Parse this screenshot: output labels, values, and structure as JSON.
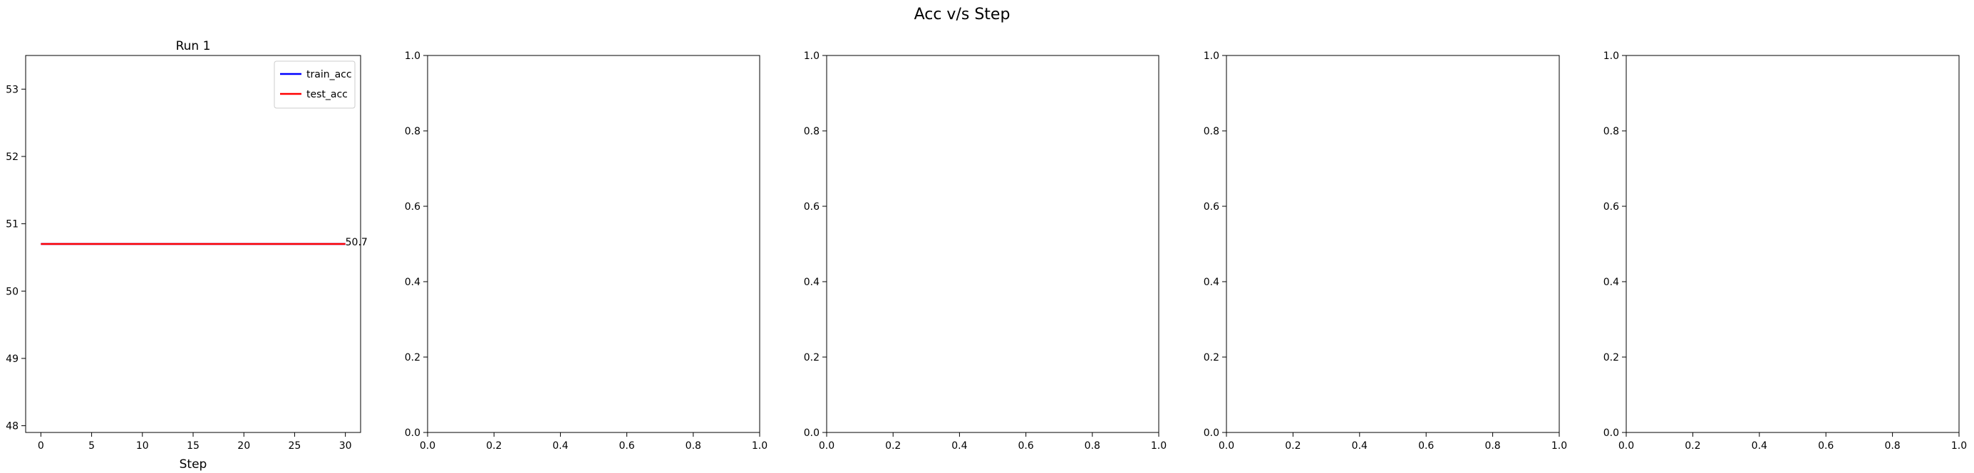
{
  "figure": {
    "suptitle": "Acc v/s Step"
  },
  "chart_data": [
    {
      "type": "line",
      "title": "Run 1",
      "xlabel": "Step",
      "ylabel": "",
      "xlim": [
        -1.5,
        31.5
      ],
      "ylim": [
        47.9,
        53.5
      ],
      "xticks": [
        0,
        5,
        10,
        15,
        20,
        25,
        30
      ],
      "yticks": [
        48,
        49,
        50,
        51,
        52,
        53
      ],
      "legend": "top-right",
      "grid": false,
      "series": [
        {
          "name": "train_acc",
          "color": "#0000ff",
          "x": [
            0,
            30
          ],
          "y": [
            50.7,
            50.7
          ]
        },
        {
          "name": "test_acc",
          "color": "#ff0000",
          "x": [
            0,
            30
          ],
          "y": [
            50.7,
            50.7
          ]
        }
      ],
      "annotations": [
        {
          "text": "50.7",
          "x": 30,
          "y": 50.7
        }
      ]
    },
    {
      "type": "line",
      "title": "",
      "xlabel": "",
      "ylabel": "",
      "xlim": [
        0,
        1
      ],
      "ylim": [
        0,
        1
      ],
      "xticks": [
        0.0,
        0.2,
        0.4,
        0.6,
        0.8,
        1.0
      ],
      "yticks": [
        0.0,
        0.2,
        0.4,
        0.6,
        0.8,
        1.0
      ],
      "xtick_labels": [
        "0.0",
        "0.2",
        "0.4",
        "0.6",
        "0.8",
        "1.0"
      ],
      "ytick_labels": [
        "0.0",
        "0.2",
        "0.4",
        "0.6",
        "0.8",
        "1.0"
      ],
      "grid": false,
      "series": []
    },
    {
      "type": "line",
      "title": "",
      "xlabel": "",
      "ylabel": "",
      "xlim": [
        0,
        1
      ],
      "ylim": [
        0,
        1
      ],
      "xticks": [
        0.0,
        0.2,
        0.4,
        0.6,
        0.8,
        1.0
      ],
      "yticks": [
        0.0,
        0.2,
        0.4,
        0.6,
        0.8,
        1.0
      ],
      "xtick_labels": [
        "0.0",
        "0.2",
        "0.4",
        "0.6",
        "0.8",
        "1.0"
      ],
      "ytick_labels": [
        "0.0",
        "0.2",
        "0.4",
        "0.6",
        "0.8",
        "1.0"
      ],
      "grid": false,
      "series": []
    },
    {
      "type": "line",
      "title": "",
      "xlabel": "",
      "ylabel": "",
      "xlim": [
        0,
        1
      ],
      "ylim": [
        0,
        1
      ],
      "xticks": [
        0.0,
        0.2,
        0.4,
        0.6,
        0.8,
        1.0
      ],
      "yticks": [
        0.0,
        0.2,
        0.4,
        0.6,
        0.8,
        1.0
      ],
      "xtick_labels": [
        "0.0",
        "0.2",
        "0.4",
        "0.6",
        "0.8",
        "1.0"
      ],
      "ytick_labels": [
        "0.0",
        "0.2",
        "0.4",
        "0.6",
        "0.8",
        "1.0"
      ],
      "grid": false,
      "series": []
    },
    {
      "type": "line",
      "title": "",
      "xlabel": "",
      "ylabel": "",
      "xlim": [
        0,
        1
      ],
      "ylim": [
        0,
        1
      ],
      "xticks": [
        0.0,
        0.2,
        0.4,
        0.6,
        0.8,
        1.0
      ],
      "yticks": [
        0.0,
        0.2,
        0.4,
        0.6,
        0.8,
        1.0
      ],
      "xtick_labels": [
        "0.0",
        "0.2",
        "0.4",
        "0.6",
        "0.8",
        "1.0"
      ],
      "ytick_labels": [
        "0.0",
        "0.2",
        "0.4",
        "0.6",
        "0.8",
        "1.0"
      ],
      "grid": false,
      "series": []
    }
  ]
}
